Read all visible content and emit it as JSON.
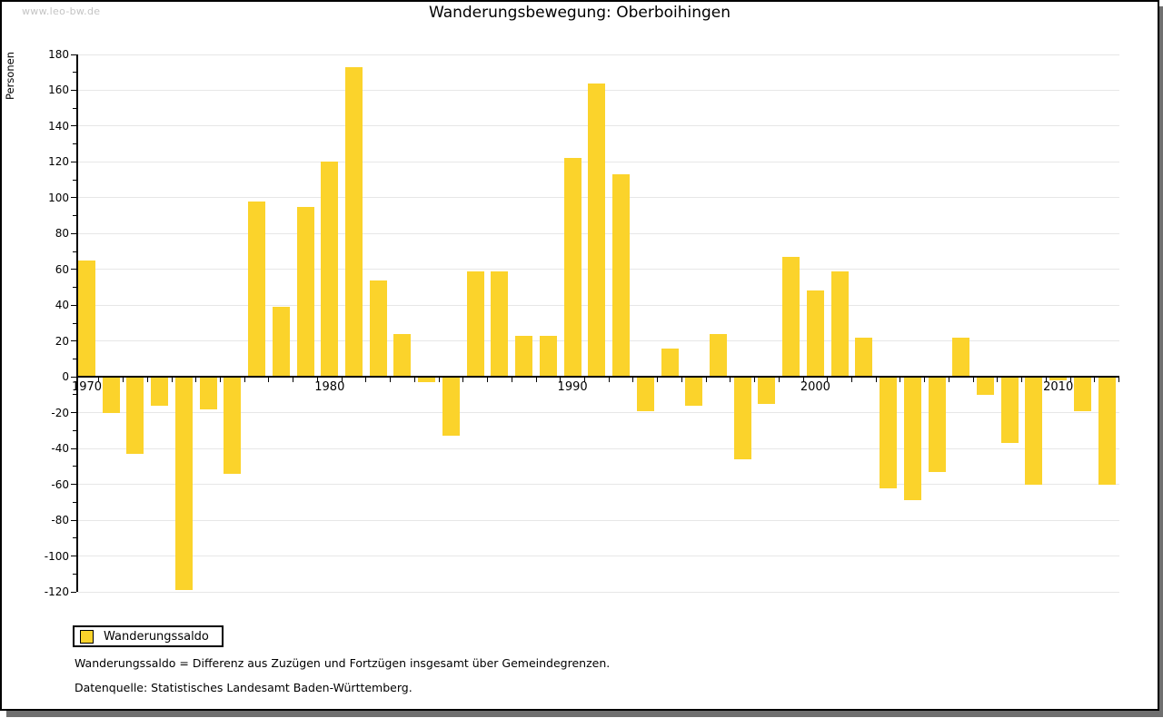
{
  "watermark": "www.leo-bw.de",
  "title": "Wanderungsbewegung: Oberboihingen",
  "y_axis_title": "Personen",
  "legend": {
    "label": "Wanderungssaldo"
  },
  "footnotes": [
    "Wanderungssaldo = Differenz aus Zuzügen und Fortzügen insgesamt über Gemeindegrenzen.",
    "Datenquelle: Statistisches Landesamt Baden-Württemberg."
  ],
  "colors": {
    "bar": "#FBD32B",
    "grid": "#E7E7E7",
    "axis": "#000000",
    "watermark": "#C4C4C4",
    "text": "#000000",
    "frame_shadow": "#6F6F6F"
  },
  "chart_data": {
    "type": "bar",
    "title": "Wanderungsbewegung: Oberboihingen",
    "series_name": "Wanderungssaldo",
    "ylabel": "Personen",
    "ylim": [
      -120,
      180
    ],
    "y_ticks": [
      180,
      160,
      140,
      120,
      100,
      80,
      60,
      40,
      20,
      0,
      -20,
      -40,
      -60,
      -80,
      -100,
      -120
    ],
    "y_minor_tick_step": 10,
    "x_tick_years": [
      1970,
      1980,
      1990,
      2000,
      2010
    ],
    "grid": "horizontal",
    "legend_position": "bottom-left",
    "x": [
      1970,
      1971,
      1972,
      1973,
      1974,
      1975,
      1976,
      1977,
      1978,
      1979,
      1980,
      1981,
      1982,
      1983,
      1984,
      1985,
      1986,
      1987,
      1988,
      1989,
      1990,
      1991,
      1992,
      1993,
      1994,
      1995,
      1996,
      1997,
      1998,
      1999,
      2000,
      2001,
      2002,
      2003,
      2004,
      2005,
      2006,
      2007,
      2008,
      2009,
      2010,
      2011,
      2012
    ],
    "values": [
      65,
      -20,
      -43,
      -16,
      -119,
      -18,
      -54,
      98,
      39,
      95,
      120,
      173,
      54,
      24,
      -3,
      -33,
      59,
      59,
      23,
      23,
      122,
      164,
      113,
      -19,
      16,
      -16,
      24,
      -46,
      -15,
      67,
      48,
      59,
      22,
      -62,
      -69,
      -53,
      22,
      -10,
      -37,
      -60,
      -2,
      -19,
      -60
    ]
  }
}
